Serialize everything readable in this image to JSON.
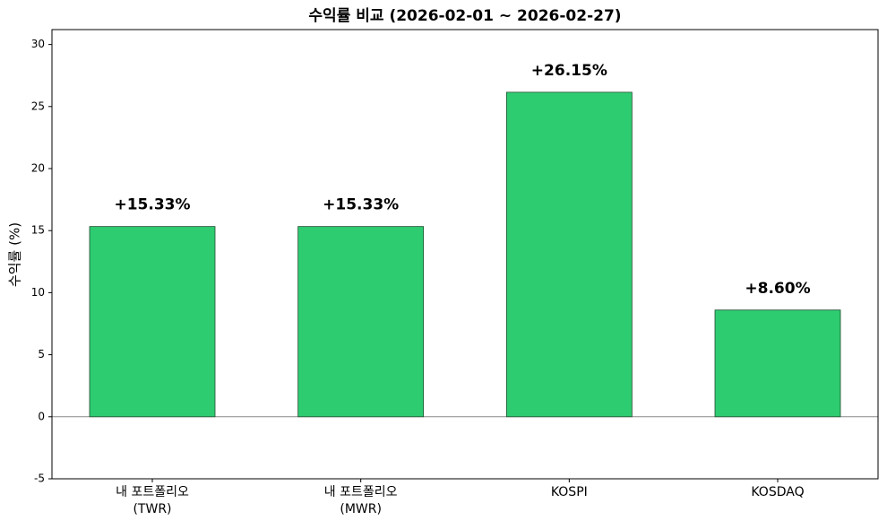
{
  "chart_data": {
    "type": "bar",
    "title": "수익률 비교 (2026-02-01 ~ 2026-02-27)",
    "y_label": "수익률 (%)",
    "categories": [
      "내 포트폴리오\n(TWR)",
      "내 포트폴리오\n(MWR)",
      "KOSPI",
      "KOSDAQ"
    ],
    "values": [
      15.33,
      15.33,
      26.15,
      8.6
    ],
    "value_labels": [
      "+15.33%",
      "+15.33%",
      "+26.15%",
      "+8.60%"
    ],
    "color": "#2ecc71",
    "ylim": [
      -5,
      31.2
    ],
    "yticks": [
      -5,
      0,
      5,
      10,
      15,
      20,
      25,
      30
    ]
  }
}
